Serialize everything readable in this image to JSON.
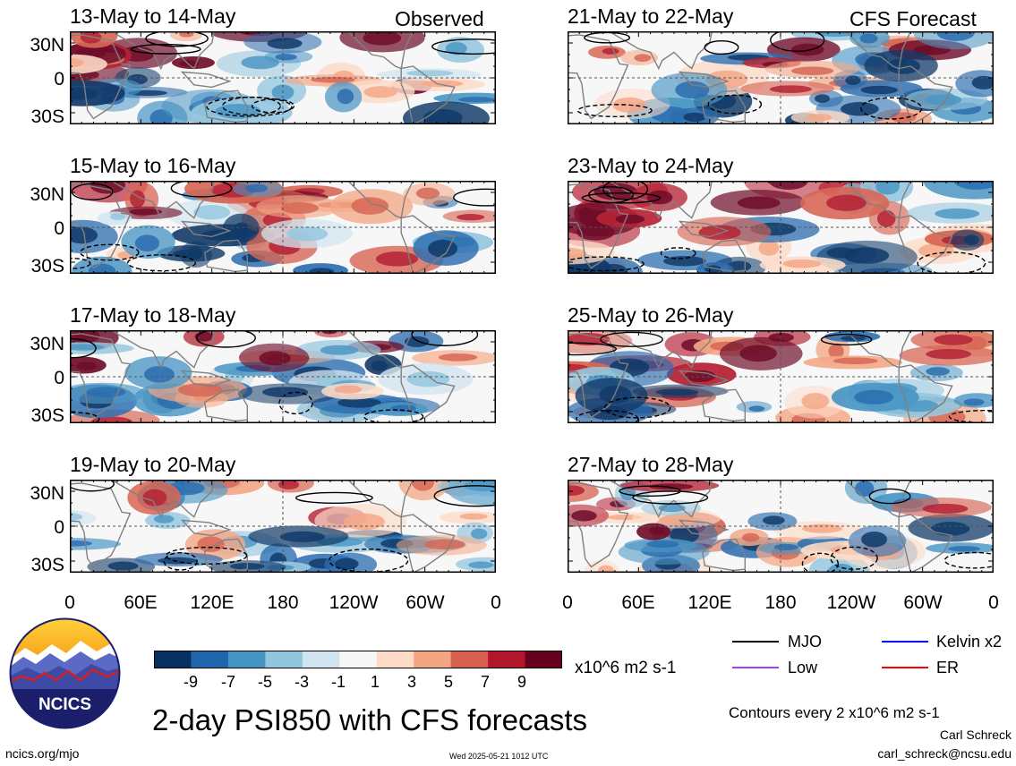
{
  "headers": {
    "left": "Observed",
    "right": "CFS Forecast"
  },
  "latitude_labels": [
    "30N",
    "0",
    "30S"
  ],
  "longitude_labels": [
    "0",
    "60E",
    "120E",
    "180",
    "120W",
    "60W",
    "0"
  ],
  "panels": [
    {
      "title": "13-May to 14-May",
      "column": "observed",
      "seed": 3
    },
    {
      "title": "15-May to 16-May",
      "column": "observed",
      "seed": 7
    },
    {
      "title": "17-May to 18-May",
      "column": "observed",
      "seed": 11
    },
    {
      "title": "19-May to 20-May",
      "column": "observed",
      "seed": 17
    },
    {
      "title": "21-May to 22-May",
      "column": "forecast",
      "seed": 23
    },
    {
      "title": "23-May to 24-May",
      "column": "forecast",
      "seed": 29
    },
    {
      "title": "25-May to 26-May",
      "column": "forecast",
      "seed": 31
    },
    {
      "title": "27-May to 28-May",
      "column": "forecast",
      "seed": 37
    }
  ],
  "colorbar": {
    "colors": [
      "#053061",
      "#2166ac",
      "#4393c3",
      "#92c5de",
      "#d1e5f0",
      "#f7f7f7",
      "#fddbc7",
      "#f4a582",
      "#d6604d",
      "#b2182b",
      "#67001f"
    ],
    "labels": [
      "-9",
      "-7",
      "-5",
      "-3",
      "-1",
      "1",
      "3",
      "5",
      "7",
      "9"
    ],
    "units": "x10^6 m2 s-1"
  },
  "legend": [
    {
      "label": "MJO",
      "color": "#000000"
    },
    {
      "label": "Kelvin x2",
      "color": "#0000ff"
    },
    {
      "label": "Low",
      "color": "#a040ff"
    },
    {
      "label": "ER",
      "color": "#ff0000"
    }
  ],
  "footer": {
    "logo_text": "NCICS",
    "main_title": "2-day PSI850 with CFS forecasts",
    "contours_note": "Contours every 2 x10^6 m2 s-1",
    "author": "Carl Schreck",
    "email": "carl_schreck@ncsu.edu",
    "url": "ncics.org/mjo",
    "timestamp": "Wed 2025-05-21 1012 UTC"
  }
}
